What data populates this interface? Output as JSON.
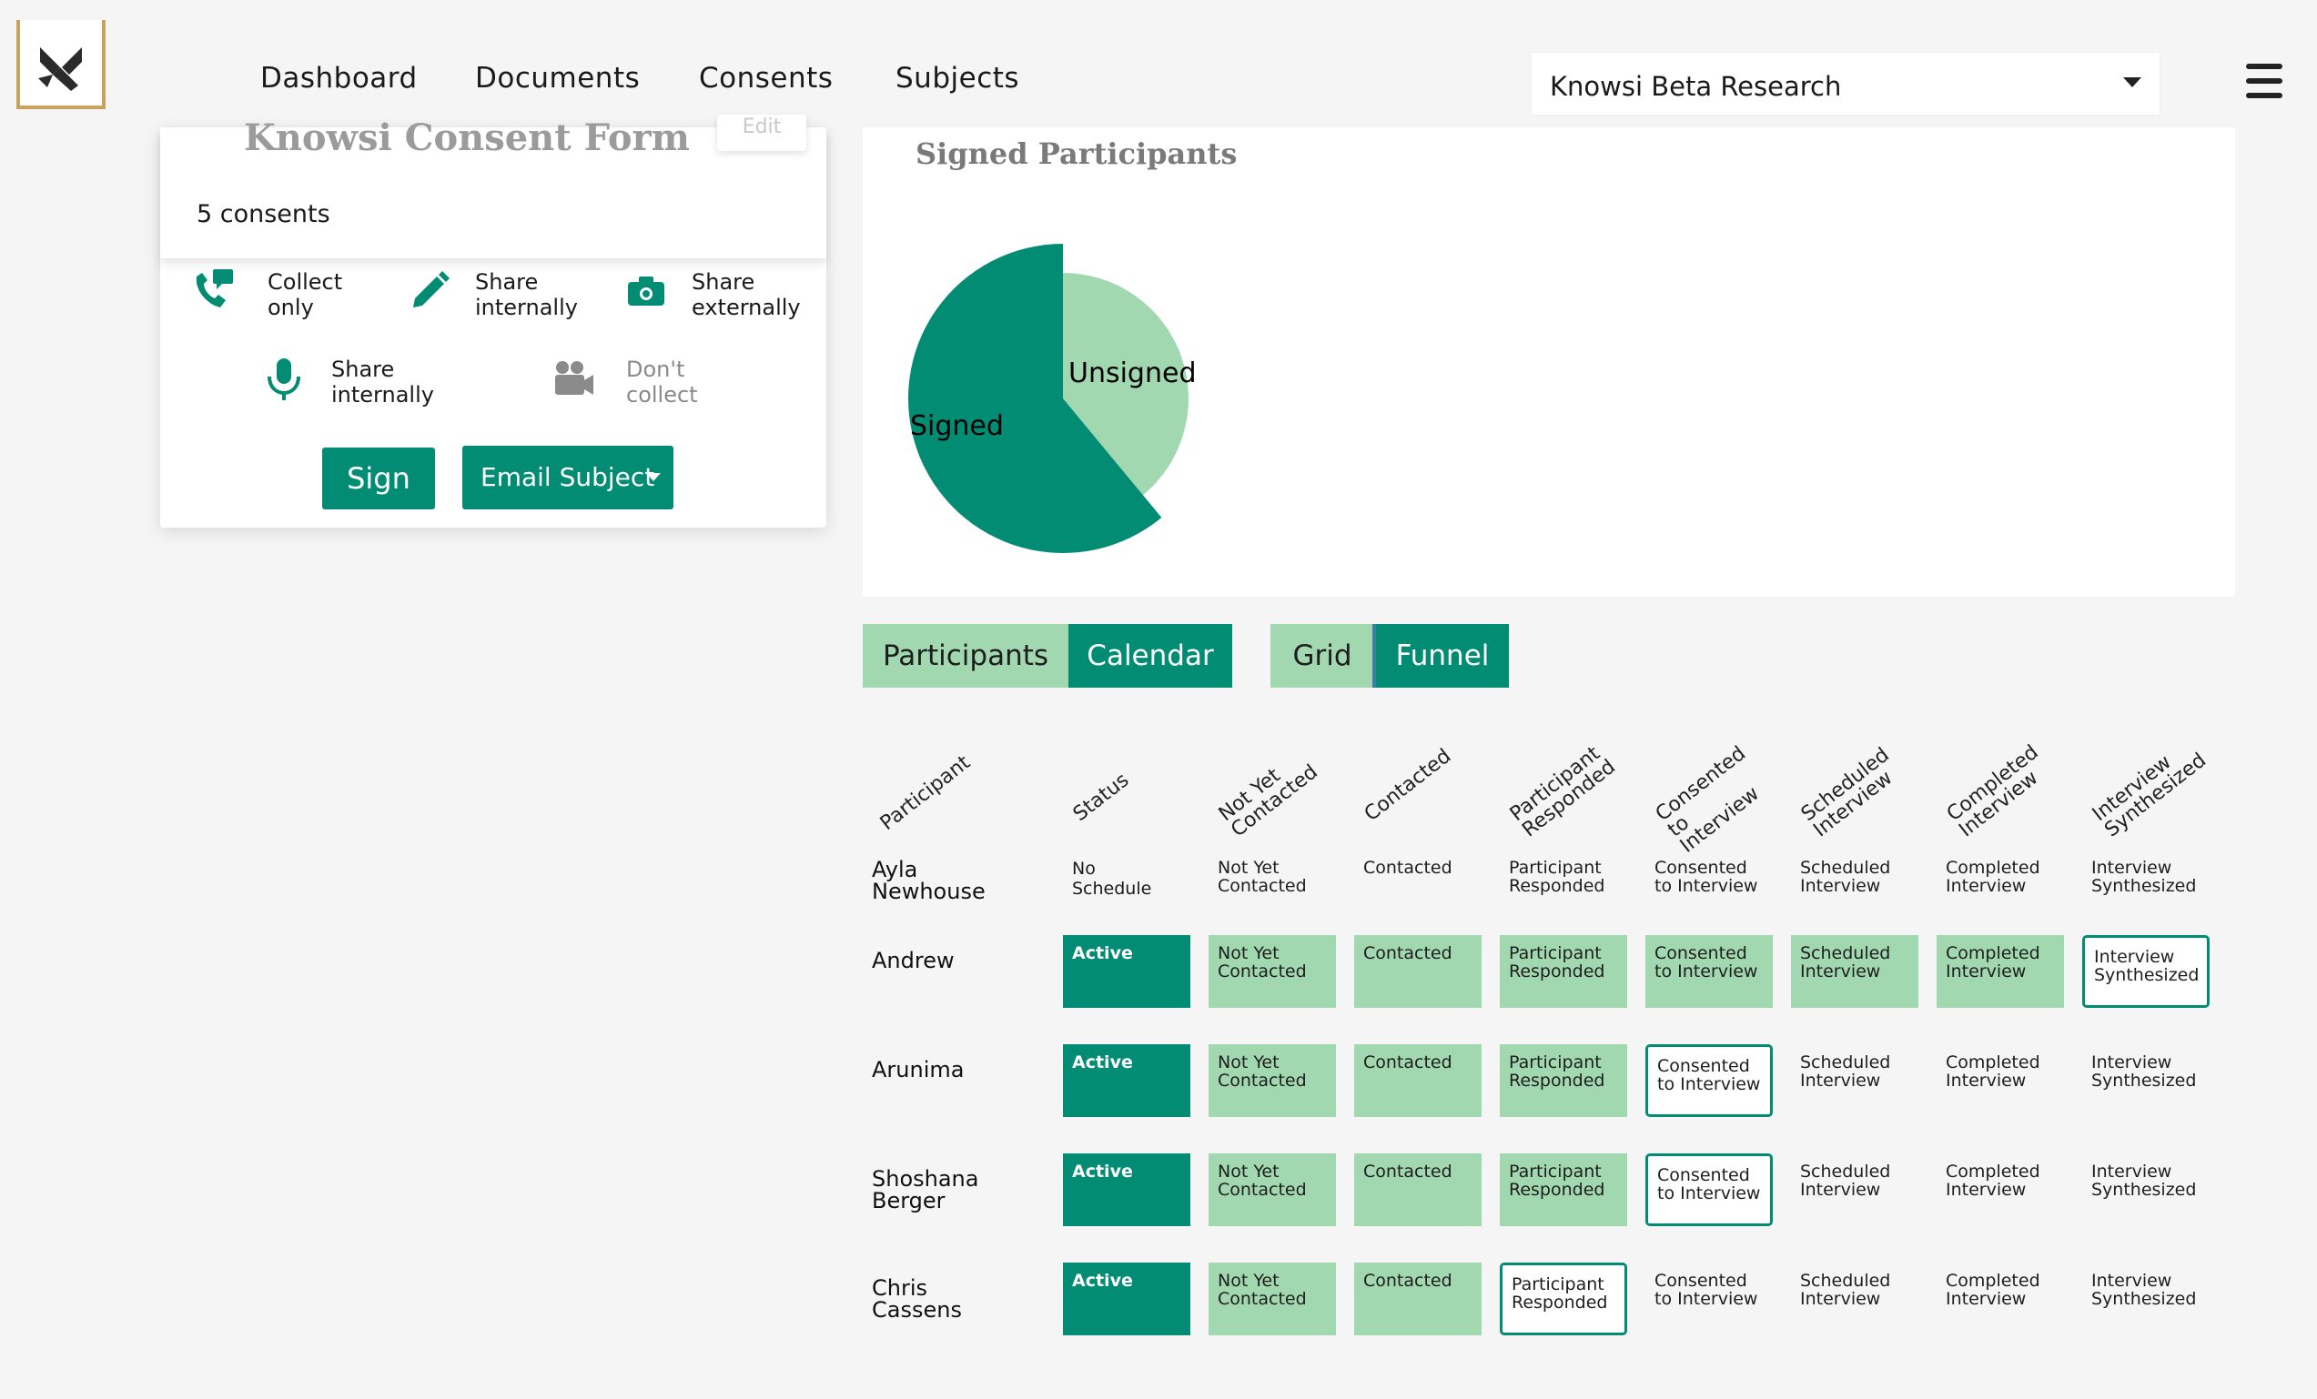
{
  "nav": {
    "links": [
      "Dashboard",
      "Documents",
      "Consents",
      "Subjects"
    ],
    "study_selected": "Knowsi Beta Research"
  },
  "consent_card": {
    "title": "Knowsi Consent Form",
    "edit_label": "Edit",
    "count_label": "5 consents",
    "permissions": [
      {
        "icon": "phone-message-icon",
        "label": "Collect\nonly"
      },
      {
        "icon": "pencil-icon",
        "label": "Share\ninternally"
      },
      {
        "icon": "camera-icon",
        "label": "Share\nexternally"
      },
      {
        "icon": "microphone-icon",
        "label": "Share\ninternally"
      },
      {
        "icon": "video-camera-icon",
        "label": "Don't\ncollect"
      }
    ],
    "sign_label": "Sign",
    "email_label": "Email Subject"
  },
  "chart_data": {
    "type": "pie",
    "title": "Signed Participants",
    "labels": [
      "Signed",
      "Unsigned"
    ],
    "values": [
      61,
      39
    ],
    "colors": [
      "#028c73",
      "#a1d8b0"
    ]
  },
  "view_toggles": {
    "participants": "Participants",
    "calendar": "Calendar",
    "grid": "Grid",
    "funnel": "Funnel"
  },
  "funnel": {
    "columns": [
      "Participant",
      "Status",
      "Not Yet\nContacted",
      "Contacted",
      "Participant\nResponded",
      "Consented\nto\nInterview",
      "Scheduled\nInterview",
      "Completed\nInterview",
      "Interview\nSynthesized"
    ],
    "rows": [
      {
        "name": "Ayla Newhouse",
        "status": "No Schedule",
        "status_style": "plain",
        "stages": [
          {
            "label": "Not Yet\nContacted",
            "style": "plain"
          },
          {
            "label": "Contacted",
            "style": "plain"
          },
          {
            "label": "Participant\nResponded",
            "style": "plain"
          },
          {
            "label": "Consented\nto Interview",
            "style": "plain"
          },
          {
            "label": "Scheduled\nInterview",
            "style": "plain"
          },
          {
            "label": "Completed\nInterview",
            "style": "plain"
          },
          {
            "label": "Interview\nSynthesized",
            "style": "plain"
          }
        ]
      },
      {
        "name": "Andrew",
        "status": "Active",
        "status_style": "active",
        "stages": [
          {
            "label": "Not Yet\nContacted",
            "style": "green"
          },
          {
            "label": "Contacted",
            "style": "green"
          },
          {
            "label": "Participant\nResponded",
            "style": "green"
          },
          {
            "label": "Consented\nto Interview",
            "style": "green"
          },
          {
            "label": "Scheduled\nInterview",
            "style": "green"
          },
          {
            "label": "Completed\nInterview",
            "style": "green"
          },
          {
            "label": "Interview\nSynthesized",
            "style": "outline"
          }
        ]
      },
      {
        "name": "Arunima",
        "status": "Active",
        "status_style": "active",
        "stages": [
          {
            "label": "Not Yet\nContacted",
            "style": "green"
          },
          {
            "label": "Contacted",
            "style": "green"
          },
          {
            "label": "Participant\nResponded",
            "style": "green"
          },
          {
            "label": "Consented\nto Interview",
            "style": "outline"
          },
          {
            "label": "Scheduled\nInterview",
            "style": "plain"
          },
          {
            "label": "Completed\nInterview",
            "style": "plain"
          },
          {
            "label": "Interview\nSynthesized",
            "style": "plain"
          }
        ]
      },
      {
        "name": "Shoshana\nBerger",
        "status": "Active",
        "status_style": "active",
        "stages": [
          {
            "label": "Not Yet\nContacted",
            "style": "green"
          },
          {
            "label": "Contacted",
            "style": "green"
          },
          {
            "label": "Participant\nResponded",
            "style": "green"
          },
          {
            "label": "Consented\nto Interview",
            "style": "outline"
          },
          {
            "label": "Scheduled\nInterview",
            "style": "plain"
          },
          {
            "label": "Completed\nInterview",
            "style": "plain"
          },
          {
            "label": "Interview\nSynthesized",
            "style": "plain"
          }
        ]
      },
      {
        "name": "Chris Cassens",
        "status": "Active",
        "status_style": "active",
        "stages": [
          {
            "label": "Not Yet\nContacted",
            "style": "green"
          },
          {
            "label": "Contacted",
            "style": "green"
          },
          {
            "label": "Participant\nResponded",
            "style": "outline"
          },
          {
            "label": "Consented\nto Interview",
            "style": "plain"
          },
          {
            "label": "Scheduled\nInterview",
            "style": "plain"
          },
          {
            "label": "Completed\nInterview",
            "style": "plain"
          },
          {
            "label": "Interview\nSynthesized",
            "style": "plain"
          }
        ]
      }
    ]
  }
}
